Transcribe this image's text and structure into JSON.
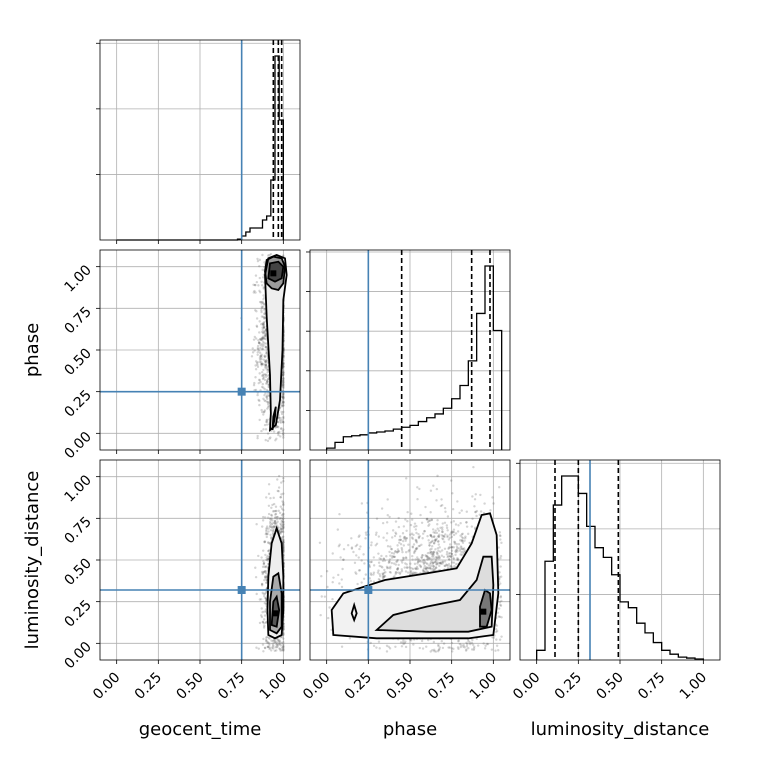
{
  "chart_data": {
    "type": "corner",
    "parameters": [
      "geocent_time",
      "phase",
      "luminosity_distance"
    ],
    "axis_ranges": {
      "geocent_time": [
        -0.1,
        1.1
      ],
      "phase": [
        -0.1,
        1.1
      ],
      "luminosity_distance": [
        -0.1,
        1.1
      ]
    },
    "tick_labels": [
      "0.00",
      "0.25",
      "0.50",
      "0.75",
      "1.00"
    ],
    "grid": true,
    "truth_color": "#4682b4",
    "truths": {
      "geocent_time": 0.75,
      "phase": 0.25,
      "luminosity_distance": 0.32
    },
    "quantile_lines": {
      "geocent_time": [
        0.94,
        0.97,
        0.99
      ],
      "phase": [
        0.45,
        0.87,
        0.98
      ],
      "luminosity_distance": [
        0.11,
        0.25,
        0.49
      ]
    },
    "histograms": {
      "geocent_time": {
        "bin_edges": [
          0.0,
          0.025,
          0.05,
          0.075,
          0.1,
          0.125,
          0.15,
          0.175,
          0.2,
          0.225,
          0.25,
          0.275,
          0.3,
          0.325,
          0.35,
          0.375,
          0.4,
          0.425,
          0.45,
          0.475,
          0.5,
          0.525,
          0.55,
          0.575,
          0.6,
          0.625,
          0.65,
          0.675,
          0.7,
          0.725,
          0.75,
          0.775,
          0.8,
          0.825,
          0.85,
          0.875,
          0.9,
          0.925,
          0.95,
          0.975,
          1.0
        ],
        "counts": [
          0,
          0,
          0,
          0,
          0,
          0,
          0,
          0,
          0,
          0,
          0,
          0,
          0,
          0,
          0,
          0,
          0,
          0,
          0,
          0,
          0,
          0,
          0,
          0,
          0,
          0,
          0,
          0,
          0,
          0.004,
          0.02,
          0.04,
          0.06,
          0.06,
          0.06,
          0.1,
          0.12,
          0.3,
          0.92,
          0.6
        ]
      },
      "phase": {
        "bin_edges": [
          0.0,
          0.05,
          0.1,
          0.15,
          0.2,
          0.25,
          0.3,
          0.35,
          0.4,
          0.45,
          0.5,
          0.55,
          0.6,
          0.65,
          0.7,
          0.75,
          0.8,
          0.85,
          0.9,
          0.95,
          1.0,
          1.05
        ],
        "counts": [
          0.01,
          0.04,
          0.07,
          0.075,
          0.08,
          0.09,
          0.095,
          0.1,
          0.11,
          0.12,
          0.13,
          0.15,
          0.17,
          0.19,
          0.22,
          0.27,
          0.34,
          0.47,
          0.72,
          0.97,
          0.63
        ]
      },
      "luminosity_distance": {
        "bin_edges": [
          0.0,
          0.05,
          0.1,
          0.15,
          0.2,
          0.25,
          0.3,
          0.35,
          0.4,
          0.45,
          0.5,
          0.55,
          0.6,
          0.65,
          0.7,
          0.75,
          0.8,
          0.85,
          0.9,
          0.95,
          1.0
        ],
        "counts": [
          0.05,
          0.51,
          0.8,
          0.95,
          0.95,
          0.86,
          0.69,
          0.58,
          0.53,
          0.44,
          0.3,
          0.27,
          0.19,
          0.14,
          0.09,
          0.05,
          0.03,
          0.015,
          0.01,
          0.005
        ]
      }
    },
    "joint": {
      "phase_vs_geocent_time": {
        "mode": [
          0.94,
          0.96
        ],
        "point_cloud_center": [
          0.95,
          0.55
        ],
        "point_cloud_spread": [
          0.05,
          0.3
        ]
      },
      "luminosity_distance_vs_geocent_time": {
        "mode": [
          0.95,
          0.18
        ],
        "point_cloud_center": [
          0.96,
          0.35
        ],
        "point_cloud_spread": [
          0.04,
          0.22
        ]
      },
      "luminosity_distance_vs_phase": {
        "mode": [
          0.94,
          0.19
        ],
        "point_cloud_center": [
          0.7,
          0.33
        ],
        "point_cloud_spread": [
          0.25,
          0.22
        ]
      }
    }
  }
}
